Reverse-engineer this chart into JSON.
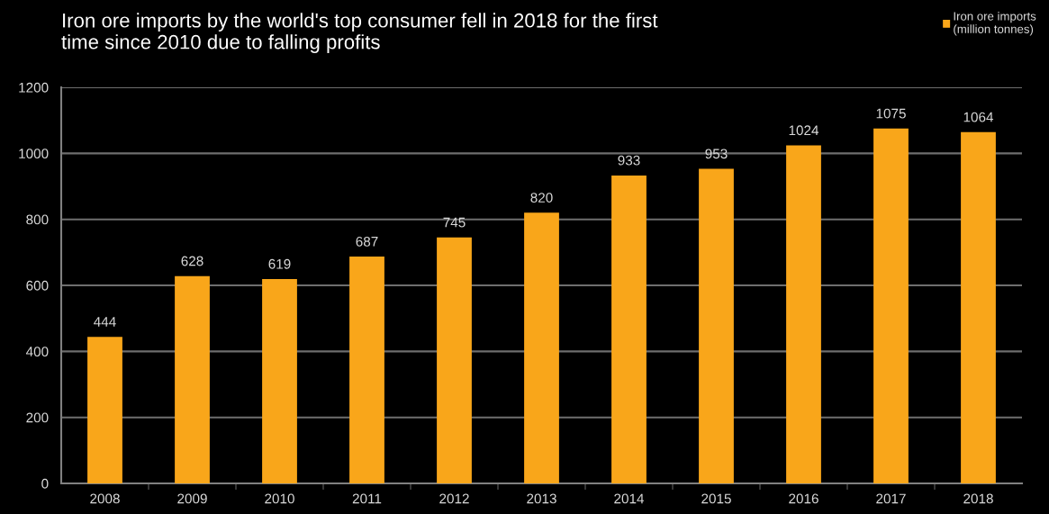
{
  "chart_data": {
    "type": "bar",
    "title": "Iron ore imports by the world's top consumer fell in 2018 for the first\ntime since 2010 due to falling profits",
    "categories": [
      "2008",
      "2009",
      "2010",
      "2011",
      "2012",
      "2013",
      "2014",
      "2015",
      "2016",
      "2017",
      "2018"
    ],
    "series": [
      {
        "name": "Iron ore imports\n(million tonnes)",
        "color": "#f9a61a",
        "values": [
          444,
          628,
          619,
          687,
          745,
          820,
          933,
          953,
          1024,
          1075,
          1064
        ]
      }
    ],
    "ylim": [
      0,
      1200
    ],
    "yticks": [
      0,
      200,
      400,
      600,
      800,
      1000,
      1200
    ],
    "grid": "y",
    "legend": "top right",
    "data_labels": true
  }
}
